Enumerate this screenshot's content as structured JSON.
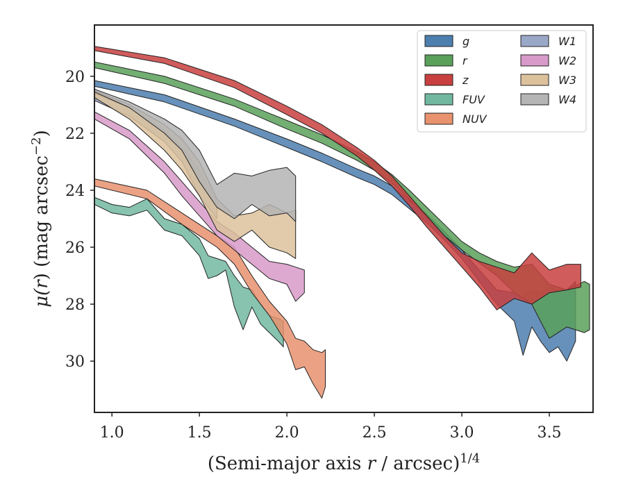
{
  "chart_data": {
    "type": "area",
    "xlabel": "(Semi-major axis r / arcsec)^{1/4}",
    "xlabel_parts": {
      "main": "(Semi-major axis ",
      "var": "r",
      "rest": " / arcsec)",
      "sup": "1/4"
    },
    "ylabel": "μ(r) (mag arcsec^-2)",
    "ylabel_parts": {
      "mu": "μ(",
      "var": "r",
      "rest": ") (mag arcsec",
      "sup": "−2",
      "close": ")"
    },
    "xlim": [
      0.9,
      3.75
    ],
    "ylim": [
      31.8,
      18.2
    ],
    "y_inverted": true,
    "x_ticks": [
      "1.0",
      "1.5",
      "2.0",
      "2.5",
      "3.0",
      "3.5"
    ],
    "y_ticks": [
      "20",
      "22",
      "24",
      "26",
      "28",
      "30"
    ],
    "grid": false,
    "legend_placement": "top-right",
    "legend_columns": 2,
    "series": [
      {
        "name": "g",
        "color": "#4c7eae",
        "lower": [
          [
            0.9,
            20.35
          ],
          [
            1.3,
            20.9
          ],
          [
            1.7,
            21.75
          ],
          [
            2.0,
            22.5
          ],
          [
            2.2,
            23.0
          ],
          [
            2.4,
            23.55
          ],
          [
            2.5,
            23.8
          ],
          [
            2.6,
            24.15
          ],
          [
            2.7,
            24.65
          ],
          [
            2.8,
            25.15
          ],
          [
            2.9,
            25.75
          ],
          [
            3.0,
            26.4
          ],
          [
            3.1,
            27.2
          ],
          [
            3.2,
            28.0
          ],
          [
            3.3,
            28.6
          ],
          [
            3.35,
            29.8
          ],
          [
            3.4,
            28.8
          ],
          [
            3.45,
            29.3
          ],
          [
            3.5,
            29.7
          ],
          [
            3.55,
            29.5
          ],
          [
            3.6,
            30.0
          ],
          [
            3.65,
            29.3
          ]
        ],
        "upper": [
          [
            0.9,
            20.15
          ],
          [
            1.3,
            20.65
          ],
          [
            1.7,
            21.5
          ],
          [
            2.0,
            22.2
          ],
          [
            2.2,
            22.7
          ],
          [
            2.4,
            23.25
          ],
          [
            2.5,
            23.5
          ],
          [
            2.6,
            23.85
          ],
          [
            2.7,
            24.35
          ],
          [
            2.8,
            24.85
          ],
          [
            2.9,
            25.45
          ],
          [
            3.0,
            26.1
          ],
          [
            3.1,
            26.8
          ],
          [
            3.2,
            27.5
          ],
          [
            3.3,
            27.6
          ],
          [
            3.35,
            27.8
          ],
          [
            3.4,
            27.5
          ],
          [
            3.45,
            27.6
          ],
          [
            3.5,
            27.4
          ],
          [
            3.55,
            27.5
          ],
          [
            3.6,
            27.5
          ],
          [
            3.65,
            27.2
          ]
        ]
      },
      {
        "name": "r",
        "color": "#5aa05a",
        "lower": [
          [
            0.9,
            19.7
          ],
          [
            1.3,
            20.25
          ],
          [
            1.7,
            21.05
          ],
          [
            2.0,
            21.85
          ],
          [
            2.2,
            22.35
          ],
          [
            2.4,
            22.95
          ],
          [
            2.5,
            23.3
          ],
          [
            2.6,
            23.75
          ],
          [
            2.7,
            24.3
          ],
          [
            2.8,
            24.95
          ],
          [
            2.9,
            25.6
          ],
          [
            3.0,
            26.1
          ],
          [
            3.1,
            26.55
          ],
          [
            3.2,
            27.0
          ],
          [
            3.3,
            27.6
          ],
          [
            3.4,
            28.0
          ],
          [
            3.5,
            29.2
          ],
          [
            3.6,
            28.8
          ],
          [
            3.7,
            29.0
          ],
          [
            3.73,
            28.9
          ]
        ],
        "upper": [
          [
            0.9,
            19.5
          ],
          [
            1.3,
            20.0
          ],
          [
            1.7,
            20.8
          ],
          [
            2.0,
            21.55
          ],
          [
            2.2,
            22.05
          ],
          [
            2.4,
            22.65
          ],
          [
            2.5,
            23.0
          ],
          [
            2.6,
            23.45
          ],
          [
            2.7,
            24.0
          ],
          [
            2.8,
            24.6
          ],
          [
            2.9,
            25.2
          ],
          [
            3.0,
            25.8
          ],
          [
            3.1,
            26.2
          ],
          [
            3.2,
            26.5
          ],
          [
            3.3,
            26.7
          ],
          [
            3.4,
            26.6
          ],
          [
            3.5,
            27.3
          ],
          [
            3.6,
            27.5
          ],
          [
            3.7,
            27.2
          ],
          [
            3.73,
            27.3
          ]
        ]
      },
      {
        "name": "z",
        "color": "#c8403f",
        "lower": [
          [
            0.9,
            19.1
          ],
          [
            1.3,
            19.55
          ],
          [
            1.7,
            20.4
          ],
          [
            2.0,
            21.35
          ],
          [
            2.2,
            22.0
          ],
          [
            2.4,
            22.8
          ],
          [
            2.5,
            23.3
          ],
          [
            2.6,
            23.85
          ],
          [
            2.7,
            24.55
          ],
          [
            2.8,
            25.3
          ],
          [
            2.9,
            26.0
          ],
          [
            3.0,
            26.7
          ],
          [
            3.1,
            27.4
          ],
          [
            3.2,
            28.2
          ],
          [
            3.3,
            27.8
          ],
          [
            3.4,
            28.0
          ],
          [
            3.5,
            27.6
          ],
          [
            3.6,
            27.5
          ],
          [
            3.68,
            27.4
          ]
        ],
        "upper": [
          [
            0.9,
            18.95
          ],
          [
            1.3,
            19.35
          ],
          [
            1.7,
            20.15
          ],
          [
            2.0,
            21.05
          ],
          [
            2.2,
            21.7
          ],
          [
            2.4,
            22.5
          ],
          [
            2.5,
            22.95
          ],
          [
            2.6,
            23.5
          ],
          [
            2.7,
            24.2
          ],
          [
            2.8,
            24.9
          ],
          [
            2.9,
            25.6
          ],
          [
            3.0,
            26.2
          ],
          [
            3.1,
            26.5
          ],
          [
            3.2,
            26.7
          ],
          [
            3.3,
            26.9
          ],
          [
            3.4,
            26.2
          ],
          [
            3.5,
            26.8
          ],
          [
            3.6,
            26.6
          ],
          [
            3.68,
            26.6
          ]
        ]
      },
      {
        "name": "FUV",
        "color": "#72b8a0",
        "lower": [
          [
            0.9,
            24.5
          ],
          [
            1.0,
            24.8
          ],
          [
            1.1,
            24.9
          ],
          [
            1.2,
            24.7
          ],
          [
            1.3,
            25.4
          ],
          [
            1.4,
            25.6
          ],
          [
            1.5,
            26.3
          ],
          [
            1.55,
            27.1
          ],
          [
            1.6,
            27.0
          ],
          [
            1.65,
            26.8
          ],
          [
            1.7,
            28.1
          ],
          [
            1.75,
            28.9
          ],
          [
            1.8,
            28.1
          ],
          [
            1.85,
            28.7
          ],
          [
            1.9,
            29.0
          ],
          [
            1.95,
            29.3
          ],
          [
            1.98,
            29.5
          ]
        ],
        "upper": [
          [
            0.9,
            24.25
          ],
          [
            1.0,
            24.5
          ],
          [
            1.1,
            24.6
          ],
          [
            1.2,
            24.3
          ],
          [
            1.3,
            25.0
          ],
          [
            1.4,
            25.2
          ],
          [
            1.5,
            25.7
          ],
          [
            1.55,
            26.3
          ],
          [
            1.6,
            26.4
          ],
          [
            1.65,
            26.5
          ],
          [
            1.7,
            27.0
          ],
          [
            1.75,
            27.4
          ],
          [
            1.8,
            27.5
          ],
          [
            1.85,
            28.0
          ],
          [
            1.9,
            28.4
          ],
          [
            1.95,
            28.5
          ],
          [
            1.98,
            28.6
          ]
        ]
      },
      {
        "name": "NUV",
        "color": "#e8926e",
        "lower": [
          [
            0.9,
            23.85
          ],
          [
            1.2,
            24.3
          ],
          [
            1.4,
            25.2
          ],
          [
            1.5,
            25.6
          ],
          [
            1.6,
            26.0
          ],
          [
            1.7,
            26.6
          ],
          [
            1.8,
            27.6
          ],
          [
            1.9,
            28.4
          ],
          [
            2.0,
            29.4
          ],
          [
            2.05,
            30.3
          ],
          [
            2.1,
            30.2
          ],
          [
            2.15,
            30.8
          ],
          [
            2.2,
            31.3
          ],
          [
            2.22,
            30.9
          ]
        ],
        "upper": [
          [
            0.9,
            23.6
          ],
          [
            1.2,
            24.0
          ],
          [
            1.4,
            24.8
          ],
          [
            1.5,
            25.2
          ],
          [
            1.6,
            25.6
          ],
          [
            1.7,
            26.0
          ],
          [
            1.8,
            27.0
          ],
          [
            1.9,
            27.9
          ],
          [
            2.0,
            28.6
          ],
          [
            2.05,
            29.2
          ],
          [
            2.1,
            29.3
          ],
          [
            2.15,
            29.6
          ],
          [
            2.2,
            29.7
          ],
          [
            2.22,
            29.6
          ]
        ]
      },
      {
        "name": "W1",
        "color": "#9aa8c8",
        "lower": [
          [
            0.9,
            20.85
          ],
          [
            1.1,
            21.4
          ],
          [
            1.3,
            22.3
          ],
          [
            1.4,
            23.0
          ],
          [
            1.5,
            24.2
          ],
          [
            1.55,
            24.6
          ],
          [
            1.6,
            25.0
          ]
        ],
        "upper": [
          [
            0.9,
            20.6
          ],
          [
            1.1,
            21.1
          ],
          [
            1.3,
            21.9
          ],
          [
            1.4,
            22.5
          ],
          [
            1.5,
            23.3
          ],
          [
            1.55,
            23.9
          ],
          [
            1.6,
            24.4
          ]
        ]
      },
      {
        "name": "W2",
        "color": "#d89ac8",
        "lower": [
          [
            0.9,
            21.5
          ],
          [
            1.1,
            22.2
          ],
          [
            1.3,
            23.4
          ],
          [
            1.4,
            24.2
          ],
          [
            1.5,
            24.9
          ],
          [
            1.6,
            25.6
          ],
          [
            1.7,
            26.1
          ],
          [
            1.8,
            26.6
          ],
          [
            1.9,
            27.1
          ],
          [
            2.0,
            27.3
          ],
          [
            2.05,
            27.9
          ],
          [
            2.1,
            27.6
          ]
        ],
        "upper": [
          [
            0.9,
            21.25
          ],
          [
            1.1,
            21.9
          ],
          [
            1.3,
            23.0
          ],
          [
            1.4,
            23.7
          ],
          [
            1.5,
            24.4
          ],
          [
            1.6,
            25.1
          ],
          [
            1.7,
            25.5
          ],
          [
            1.8,
            26.0
          ],
          [
            1.9,
            26.5
          ],
          [
            2.0,
            26.6
          ],
          [
            2.05,
            26.7
          ],
          [
            2.1,
            26.8
          ]
        ]
      },
      {
        "name": "W3",
        "color": "#dcc29c",
        "lower": [
          [
            0.9,
            20.75
          ],
          [
            1.1,
            21.5
          ],
          [
            1.3,
            22.6
          ],
          [
            1.4,
            23.3
          ],
          [
            1.5,
            24.2
          ],
          [
            1.6,
            25.4
          ],
          [
            1.7,
            25.8
          ],
          [
            1.8,
            25.4
          ],
          [
            1.9,
            26.0
          ],
          [
            2.0,
            26.2
          ],
          [
            2.05,
            26.4
          ]
        ],
        "upper": [
          [
            0.9,
            20.5
          ],
          [
            1.1,
            21.0
          ],
          [
            1.3,
            21.7
          ],
          [
            1.4,
            22.2
          ],
          [
            1.5,
            23.0
          ],
          [
            1.6,
            24.3
          ],
          [
            1.7,
            24.9
          ],
          [
            1.8,
            24.8
          ],
          [
            1.9,
            24.5
          ],
          [
            2.0,
            24.8
          ],
          [
            2.05,
            24.7
          ]
        ]
      },
      {
        "name": "W4",
        "color": "#b4b4b4",
        "lower": [
          [
            0.9,
            20.55
          ],
          [
            1.1,
            21.1
          ],
          [
            1.3,
            22.0
          ],
          [
            1.4,
            22.6
          ],
          [
            1.5,
            23.7
          ],
          [
            1.6,
            24.6
          ],
          [
            1.7,
            25.0
          ],
          [
            1.8,
            24.5
          ],
          [
            1.9,
            24.9
          ],
          [
            2.0,
            24.8
          ],
          [
            2.05,
            25.1
          ]
        ],
        "upper": [
          [
            0.9,
            20.45
          ],
          [
            1.1,
            20.9
          ],
          [
            1.3,
            21.5
          ],
          [
            1.4,
            21.9
          ],
          [
            1.5,
            22.6
          ],
          [
            1.6,
            23.8
          ],
          [
            1.7,
            23.4
          ],
          [
            1.8,
            23.5
          ],
          [
            1.9,
            23.3
          ],
          [
            2.0,
            23.2
          ],
          [
            2.05,
            23.5
          ]
        ]
      }
    ]
  }
}
